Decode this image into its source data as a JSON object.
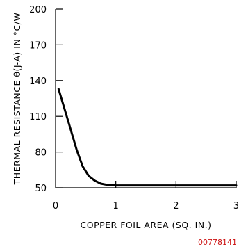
{
  "chart_data": {
    "type": "line",
    "title": "",
    "xlabel": "COPPER FOIL AREA (SQ. IN.)",
    "ylabel": "THERMAL RESISTANCE θ(J-A) IN °C/W",
    "xlim": [
      0,
      3
    ],
    "ylim": [
      50,
      200
    ],
    "xticks": [
      0,
      1,
      2,
      3
    ],
    "xtick_labels": [
      "0",
      "1",
      "2",
      "3"
    ],
    "yticks": [
      50,
      80,
      110,
      140,
      170,
      200
    ],
    "ytick_labels": [
      "50",
      "80",
      "110",
      "140",
      "170",
      "200"
    ],
    "grid": false,
    "series": [
      {
        "x": [
          0.05,
          0.15,
          0.25,
          0.35,
          0.45,
          0.55,
          0.65,
          0.75,
          0.85,
          1.0,
          1.5,
          2.0,
          2.5,
          3.0
        ],
        "y": [
          133,
          116,
          99,
          82,
          68,
          60,
          56,
          53.5,
          52.5,
          52,
          52,
          52,
          52,
          52
        ]
      }
    ]
  },
  "figure_id": "00778141"
}
